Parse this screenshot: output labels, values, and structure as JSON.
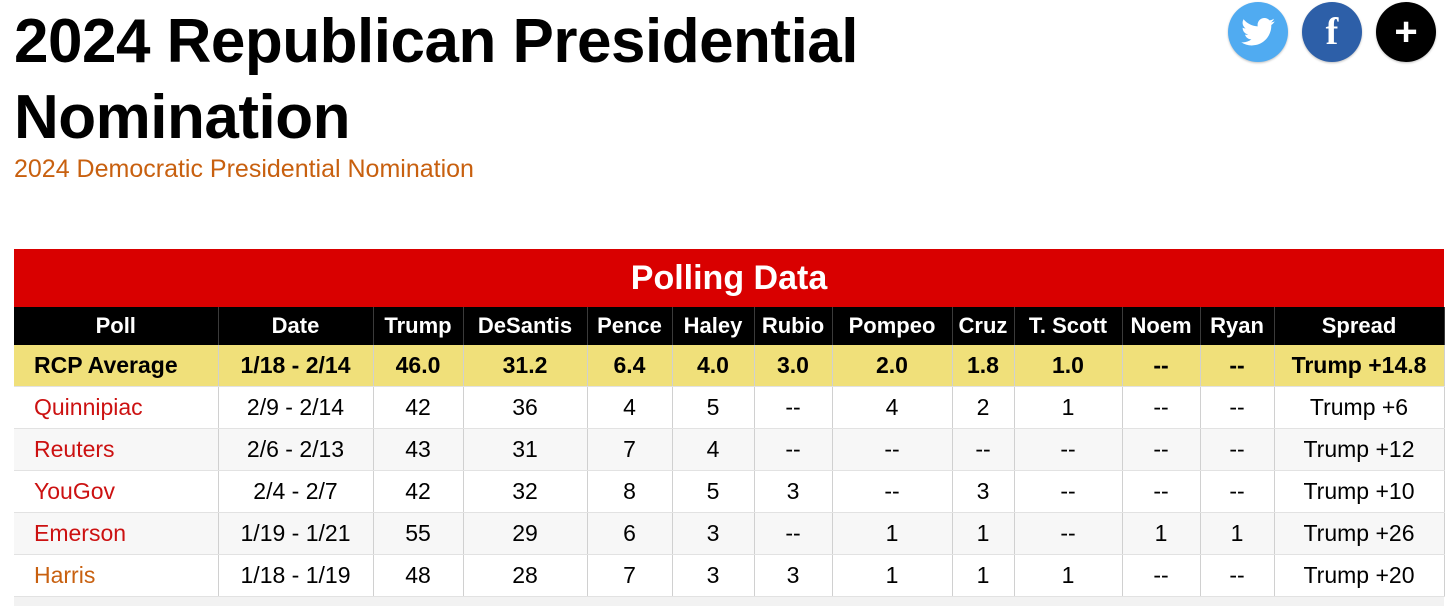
{
  "header": {
    "title": "2024 Republican Presidential Nomination",
    "related_link": "2024 Democratic Presidential Nomination"
  },
  "social": {
    "twitter_icon": "twitter-icon",
    "facebook_label": "f",
    "share_label": "+"
  },
  "table": {
    "caption": "Polling Data",
    "columns": [
      "Poll",
      "Date",
      "Trump",
      "DeSantis",
      "Pence",
      "Haley",
      "Rubio",
      "Pompeo",
      "Cruz",
      "T. Scott",
      "Noem",
      "Ryan",
      "Spread"
    ],
    "rows": [
      {
        "poll": "RCP Average",
        "cells": [
          "1/18 - 2/14",
          "46.0",
          "31.2",
          "6.4",
          "4.0",
          "3.0",
          "2.0",
          "1.8",
          "1.0",
          "--",
          "--",
          "Trump +14.8"
        ]
      },
      {
        "poll": "Quinnipiac",
        "cells": [
          "2/9 - 2/14",
          "42",
          "36",
          "4",
          "5",
          "--",
          "4",
          "2",
          "1",
          "--",
          "--",
          "Trump +6"
        ]
      },
      {
        "poll": "Reuters",
        "cells": [
          "2/6 - 2/13",
          "43",
          "31",
          "7",
          "4",
          "--",
          "--",
          "--",
          "--",
          "--",
          "--",
          "Trump +12"
        ]
      },
      {
        "poll": "YouGov",
        "cells": [
          "2/4 - 2/7",
          "42",
          "32",
          "8",
          "5",
          "3",
          "--",
          "3",
          "--",
          "--",
          "--",
          "Trump +10"
        ]
      },
      {
        "poll": "Emerson",
        "cells": [
          "1/19 - 1/21",
          "55",
          "29",
          "6",
          "3",
          "--",
          "1",
          "1",
          "--",
          "1",
          "1",
          "Trump +26"
        ]
      },
      {
        "poll": "Harris",
        "cells": [
          "1/18 - 1/19",
          "48",
          "28",
          "7",
          "3",
          "3",
          "1",
          "1",
          "1",
          "--",
          "--",
          "Trump +20"
        ]
      }
    ]
  },
  "colors": {
    "caption_bg": "#d90000",
    "header_bg": "#000000",
    "average_row_bg": "#f0e07a",
    "poll_link": "#cc1111",
    "orange_link": "#c8600f",
    "twitter": "#50abf1",
    "facebook": "#2d5fa8"
  }
}
